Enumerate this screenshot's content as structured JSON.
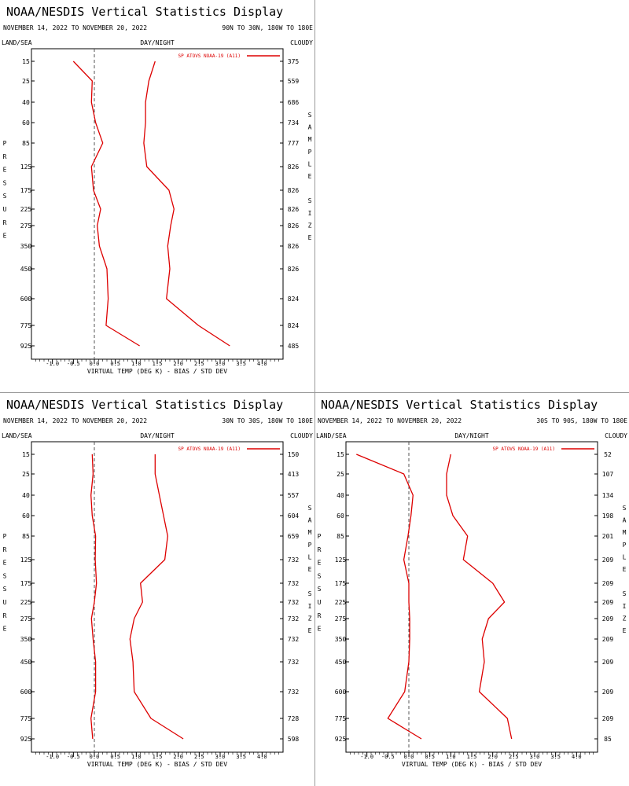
{
  "panels": [
    {
      "title": "NOAA/NESDIS Vertical Statistics Display",
      "date_range": "NOVEMBER 14, 2022 TO NOVEMBER 20, 2022",
      "region": "90N TO 30N, 180W TO 180E",
      "land_sea": "LAND/SEA",
      "day_night": "DAY/NIGHT",
      "cloudy": "CLOUDY",
      "xlabel": "VIRTUAL TEMP (DEG K) - BIAS / STD DEV",
      "left_label": "PRESSURE",
      "right_label": "SAMPLE SIZE",
      "legend": "SP ATOVS NOAA-19 (A11)",
      "legend_location": "top-right",
      "series_color": "#dd0000",
      "chart_data": {
        "type": "line",
        "xlim": [
          -1.5,
          4.5
        ],
        "x_ticks": [
          -1.0,
          -0.5,
          0.0,
          0.5,
          1.0,
          1.5,
          2.0,
          2.5,
          3.0,
          3.5,
          4.0
        ],
        "x_tick_labels": [
          "-1.0",
          "-0.5",
          "0.0",
          "0.5",
          "1.0",
          "1.5",
          "2.0",
          "2.5",
          "3.0",
          "3.5",
          "4.0"
        ],
        "pressure_levels": [
          "15",
          "25",
          "40",
          "60",
          "85",
          "125",
          "175",
          "225",
          "275",
          "350",
          "450",
          "600",
          "775",
          "925"
        ],
        "sample_size": [
          "375",
          "559",
          "686",
          "734",
          "777",
          "826",
          "826",
          "826",
          "826",
          "826",
          "826",
          "824",
          "824",
          "485"
        ],
        "series": [
          {
            "name": "BIAS",
            "values": [
              -0.5,
              -0.05,
              -0.07,
              0.03,
              0.2,
              -0.07,
              -0.02,
              0.15,
              0.07,
              0.12,
              0.3,
              0.33,
              0.28,
              1.08
            ]
          },
          {
            "name": "STD DEV",
            "values": [
              1.45,
              1.3,
              1.22,
              1.22,
              1.18,
              1.25,
              1.78,
              1.9,
              1.82,
              1.75,
              1.8,
              1.72,
              2.48,
              3.23
            ]
          }
        ]
      }
    },
    {
      "title": "NOAA/NESDIS Vertical Statistics Display",
      "date_range": "NOVEMBER 14, 2022 TO NOVEMBER 20, 2022",
      "region": "30N TO 30S, 180W TO 180E",
      "land_sea": "LAND/SEA",
      "day_night": "DAY/NIGHT",
      "cloudy": "CLOUDY",
      "xlabel": "VIRTUAL TEMP (DEG K) - BIAS / STD DEV",
      "left_label": "PRESSURE",
      "right_label": "SAMPLE SIZE",
      "legend": "SP ATOVS NOAA-19 (A11)",
      "legend_location": "top-right",
      "series_color": "#dd0000",
      "chart_data": {
        "type": "line",
        "xlim": [
          -1.5,
          4.5
        ],
        "x_ticks": [
          -1.0,
          -0.5,
          0.0,
          0.5,
          1.0,
          1.5,
          2.0,
          2.5,
          3.0,
          3.5,
          4.0
        ],
        "x_tick_labels": [
          "-1.0",
          "-0.5",
          "0.0",
          "0.5",
          "1.0",
          "1.5",
          "2.0",
          "2.5",
          "3.0",
          "3.5",
          "4.0"
        ],
        "pressure_levels": [
          "15",
          "25",
          "40",
          "60",
          "85",
          "125",
          "175",
          "225",
          "275",
          "350",
          "450",
          "600",
          "775",
          "925"
        ],
        "sample_size": [
          "150",
          "413",
          "557",
          "604",
          "659",
          "732",
          "732",
          "732",
          "732",
          "732",
          "732",
          "732",
          "728",
          "598"
        ],
        "series": [
          {
            "name": "BIAS",
            "values": [
              -0.05,
              -0.03,
              -0.08,
              -0.05,
              0.03,
              0.02,
              0.05,
              0.0,
              -0.07,
              -0.03,
              0.03,
              0.03,
              -0.08,
              -0.04
            ]
          },
          {
            "name": "STD DEV",
            "values": [
              1.45,
              1.45,
              1.55,
              1.65,
              1.75,
              1.68,
              1.1,
              1.15,
              0.95,
              0.85,
              0.92,
              0.95,
              1.35,
              2.12
            ]
          }
        ]
      }
    },
    {
      "title": "NOAA/NESDIS Vertical Statistics Display",
      "date_range": "NOVEMBER 14, 2022 TO NOVEMBER 20, 2022",
      "region": "30S TO 90S, 180W TO 180E",
      "land_sea": "LAND/SEA",
      "day_night": "DAY/NIGHT",
      "cloudy": "CLOUDY",
      "xlabel": "VIRTUAL TEMP (DEG K) - BIAS / STD DEV",
      "left_label": "PRESSURE",
      "right_label": "SAMPLE SIZE",
      "legend": "SP ATOVS NOAA-19 (A11)",
      "legend_location": "top-right",
      "series_color": "#dd0000",
      "chart_data": {
        "type": "line",
        "xlim": [
          -1.5,
          4.5
        ],
        "x_ticks": [
          -1.0,
          -0.5,
          0.0,
          0.5,
          1.0,
          1.5,
          2.0,
          2.5,
          3.0,
          3.5,
          4.0
        ],
        "x_tick_labels": [
          "-1.0",
          "-0.5",
          "0.0",
          "0.5",
          "1.0",
          "1.5",
          "2.0",
          "2.5",
          "3.0",
          "3.5",
          "4.0"
        ],
        "pressure_levels": [
          "15",
          "25",
          "40",
          "60",
          "85",
          "125",
          "175",
          "225",
          "275",
          "350",
          "450",
          "600",
          "775",
          "925"
        ],
        "sample_size": [
          "52",
          "107",
          "134",
          "198",
          "201",
          "209",
          "209",
          "209",
          "209",
          "209",
          "209",
          "209",
          "209",
          "85"
        ],
        "series": [
          {
            "name": "BIAS",
            "values": [
              -1.25,
              -0.12,
              0.1,
              0.05,
              -0.02,
              -0.12,
              0.0,
              0.0,
              0.02,
              0.02,
              0.0,
              -0.1,
              -0.5,
              0.3
            ]
          },
          {
            "name": "STD DEV",
            "values": [
              1.0,
              0.9,
              0.9,
              1.05,
              1.4,
              1.3,
              2.0,
              2.28,
              1.9,
              1.75,
              1.8,
              1.68,
              2.35,
              2.45
            ]
          }
        ]
      }
    }
  ]
}
